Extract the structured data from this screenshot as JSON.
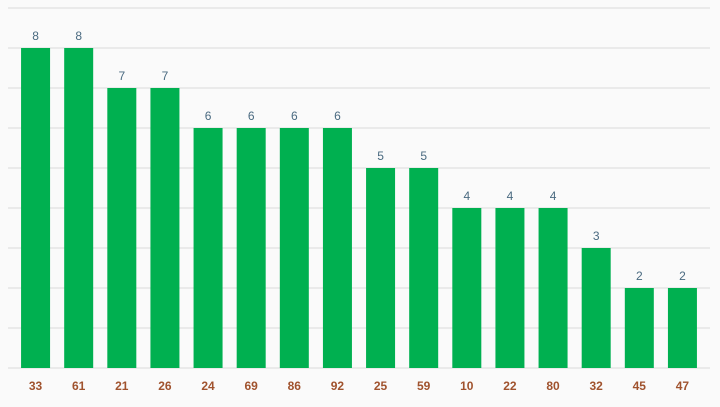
{
  "chart_data": {
    "type": "bar",
    "categories": [
      "33",
      "61",
      "21",
      "26",
      "24",
      "69",
      "86",
      "92",
      "25",
      "59",
      "10",
      "22",
      "80",
      "32",
      "45",
      "47"
    ],
    "values": [
      8,
      8,
      7,
      7,
      6,
      6,
      6,
      6,
      5,
      5,
      4,
      4,
      4,
      3,
      2,
      2
    ],
    "title": "",
    "xlabel": "",
    "ylabel": "",
    "ylim": [
      0,
      9
    ],
    "grid": true,
    "data_labels": true,
    "colors": {
      "bar": "#00b050",
      "data_label": "#4a6a80",
      "tick_label": "#a0522d",
      "grid": "#d9d9d9",
      "background": "#fafafa"
    }
  }
}
